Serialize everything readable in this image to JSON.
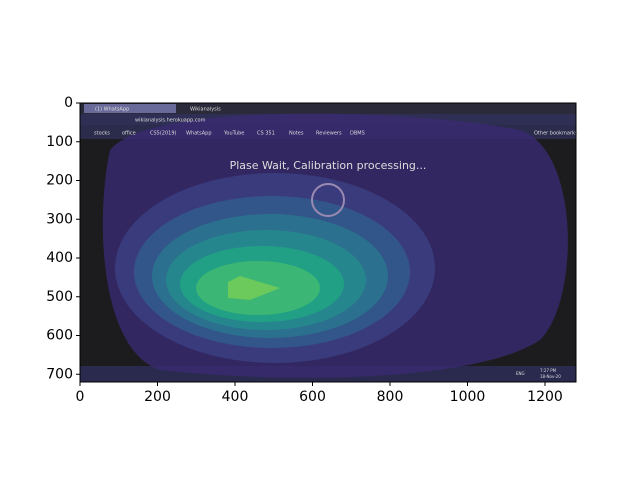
{
  "chart_data": {
    "type": "image",
    "xlim": [
      0,
      1280
    ],
    "ylim": [
      720,
      0
    ],
    "xticks": [
      0,
      200,
      400,
      600,
      800,
      1000,
      1200
    ],
    "yticks": [
      0,
      100,
      200,
      300,
      400,
      500,
      600,
      700
    ],
    "screen": {
      "tabs": [
        "(1) WhatsApp",
        "Wikianalysis"
      ],
      "url": "wikianalysis.herokuapp.com",
      "bookmarks": [
        "stocks",
        "office",
        "CS5(2019)",
        "WhatsApp",
        "YouTube",
        "CS 351",
        "Notes",
        "Reviewers",
        "DBMS"
      ],
      "other_bookmarks": "Other bookmarks",
      "message": "Plase Wait, Calibration processing...",
      "taskbar": [
        "ENG",
        "7:27 PM",
        "18-Nov-20"
      ]
    }
  }
}
